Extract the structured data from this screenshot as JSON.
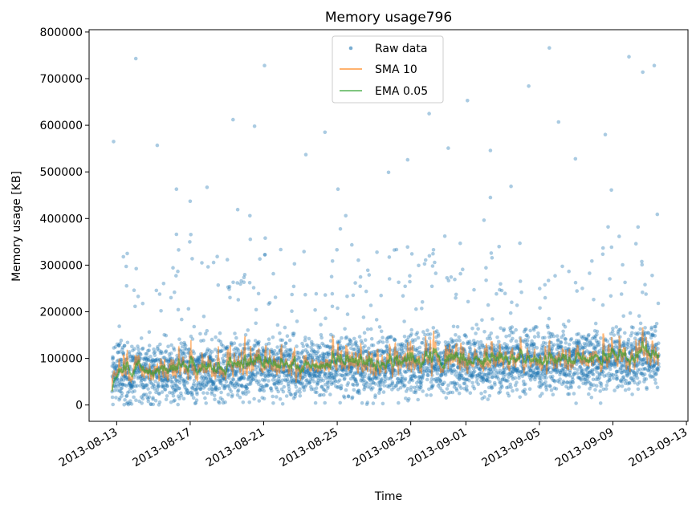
{
  "chart_data": {
    "type": "line",
    "title": "Memory usage796",
    "xlabel": "Time",
    "ylabel": "Memory usage [KB]",
    "x_range": [
      "2013-08-11T12:00",
      "2013-09-13T02:00"
    ],
    "ylim": [
      -35000,
      805000
    ],
    "y_ticks": [
      0,
      100000,
      200000,
      300000,
      400000,
      500000,
      600000,
      700000,
      800000
    ],
    "x_ticks": [
      "2013-08-13",
      "2013-08-17",
      "2013-08-21",
      "2013-08-25",
      "2013-08-29",
      "2013-09-01",
      "2013-09-05",
      "2013-09-09",
      "2013-09-13"
    ],
    "grid": false,
    "legend_position": "top-center",
    "x_start": "2013-08-12T18:00",
    "x_end": "2013-09-11T12:00",
    "series": [
      {
        "name": "Raw data",
        "style": "markers",
        "color": "#1f77b4",
        "typical_center_kb": [
          70000,
          100000
        ],
        "typical_spread_kb": 45000,
        "outliers": [
          {
            "x": "2013-08-12T20:00",
            "y": 565000
          },
          {
            "x": "2013-08-14T01:00",
            "y": 743000
          },
          {
            "x": "2013-08-15T05:00",
            "y": 557000
          },
          {
            "x": "2013-08-16T06:00",
            "y": 463000
          },
          {
            "x": "2013-08-16T06:00",
            "y": 366000
          },
          {
            "x": "2013-08-17T00:00",
            "y": 437000
          },
          {
            "x": "2013-08-17T22:00",
            "y": 467000
          },
          {
            "x": "2013-08-19T08:00",
            "y": 612000
          },
          {
            "x": "2013-08-19T14:00",
            "y": 419000
          },
          {
            "x": "2013-08-20T06:00",
            "y": 406000
          },
          {
            "x": "2013-08-20T12:00",
            "y": 598000
          },
          {
            "x": "2013-08-21T01:00",
            "y": 728000
          },
          {
            "x": "2013-08-21T02:00",
            "y": 358000
          },
          {
            "x": "2013-08-23T07:00",
            "y": 537000
          },
          {
            "x": "2013-08-24T08:00",
            "y": 585000
          },
          {
            "x": "2013-08-25T01:00",
            "y": 463000
          },
          {
            "x": "2013-08-27T19:00",
            "y": 499000
          },
          {
            "x": "2013-08-28T20:00",
            "y": 526000
          },
          {
            "x": "2013-08-30T00:00",
            "y": 625000
          },
          {
            "x": "2013-08-31T01:00",
            "y": 551000
          },
          {
            "x": "2013-09-01T02:00",
            "y": 653000
          },
          {
            "x": "2013-09-02T08:00",
            "y": 546000
          },
          {
            "x": "2013-09-02T08:00",
            "y": 445000
          },
          {
            "x": "2013-09-03T11:00",
            "y": 469000
          },
          {
            "x": "2013-09-04T10:00",
            "y": 684000
          },
          {
            "x": "2013-09-05T13:00",
            "y": 766000
          },
          {
            "x": "2013-09-06T01:00",
            "y": 607000
          },
          {
            "x": "2013-09-06T23:00",
            "y": 528000
          },
          {
            "x": "2013-09-08T14:00",
            "y": 580000
          },
          {
            "x": "2013-09-08T22:00",
            "y": 461000
          },
          {
            "x": "2013-09-09T21:00",
            "y": 747000
          },
          {
            "x": "2013-09-10T15:00",
            "y": 714000
          },
          {
            "x": "2013-09-11T06:00",
            "y": 728000
          },
          {
            "x": "2013-09-11T10:00",
            "y": 409000
          }
        ]
      },
      {
        "name": "SMA 10",
        "style": "line",
        "color": "#ff7f0e",
        "baseline_kb": [
          78000,
          108000
        ],
        "typical_spikes_kb": [
          200000,
          230000
        ]
      },
      {
        "name": "EMA 0.05",
        "style": "line",
        "color": "#2ca02c",
        "baseline_kb": [
          80000,
          110000
        ]
      }
    ]
  }
}
